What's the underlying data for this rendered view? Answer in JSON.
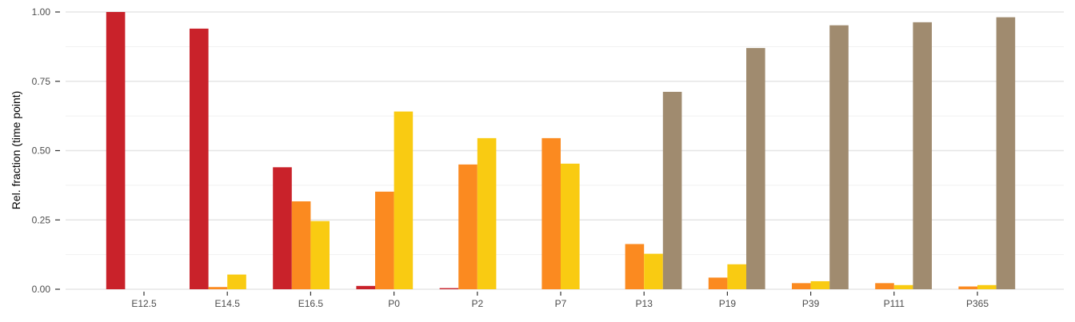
{
  "chart_data": {
    "type": "bar",
    "title": "",
    "xlabel": "",
    "ylabel": "Rel. fraction (time point)",
    "ylim": [
      0,
      1
    ],
    "yticks": [
      "0.00",
      "0.25",
      "0.50",
      "0.75",
      "1.00"
    ],
    "grid": true,
    "legend": "none",
    "categories": [
      "E12.5",
      "E14.5",
      "E16.5",
      "P0",
      "P2",
      "P7",
      "P13",
      "P19",
      "P39",
      "P111",
      "P365"
    ],
    "series": [
      {
        "color": "#C9222A",
        "values": [
          1.0,
          0.94,
          0.44,
          0.012,
          0.004,
          0,
          0,
          0,
          0,
          0,
          0
        ]
      },
      {
        "color": "#FB8A20",
        "values": [
          0,
          0.008,
          0.317,
          0.352,
          0.45,
          0.545,
          0.163,
          0.042,
          0.022,
          0.022,
          0.01
        ]
      },
      {
        "color": "#F9CB12",
        "values": [
          0,
          0.053,
          0.246,
          0.641,
          0.545,
          0.453,
          0.128,
          0.09,
          0.029,
          0.015,
          0.015
        ]
      },
      {
        "color": "#A08B6F",
        "values": [
          0,
          0,
          0,
          0,
          0,
          0,
          0.712,
          0.87,
          0.952,
          0.963,
          0.981
        ]
      }
    ]
  }
}
